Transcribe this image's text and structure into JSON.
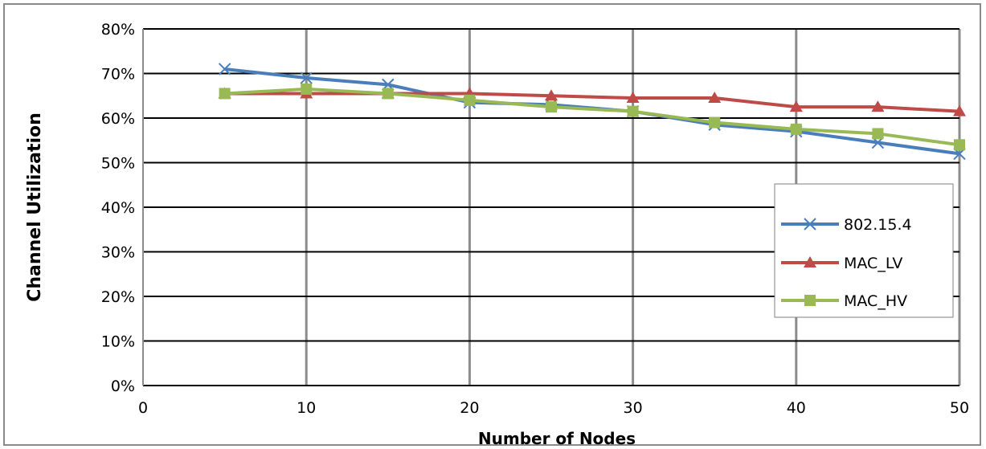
{
  "chart_data": {
    "type": "line",
    "title": "",
    "xlabel": "Number of Nodes",
    "ylabel": "Channel Utilization",
    "xlim": [
      0,
      50
    ],
    "ylim": [
      0,
      80
    ],
    "x_ticks": [
      0,
      10,
      20,
      30,
      40,
      50
    ],
    "y_ticks": [
      0,
      10,
      20,
      30,
      40,
      50,
      60,
      70,
      80
    ],
    "y_tick_labels": [
      "0%",
      "10%",
      "20%",
      "30%",
      "40%",
      "50%",
      "60%",
      "70%",
      "80%"
    ],
    "grid": {
      "horizontal": true,
      "vertical": true
    },
    "legend_position": "right",
    "series": [
      {
        "name": "802.15.4",
        "color": "#4a7ebb",
        "marker": "x",
        "x": [
          5,
          10,
          15,
          20,
          25,
          30,
          35,
          40,
          45,
          50
        ],
        "values": [
          71,
          69,
          67.5,
          63.5,
          63,
          61.5,
          58.5,
          57,
          54.5,
          52
        ]
      },
      {
        "name": "MAC_LV",
        "color": "#be4b48",
        "marker": "triangle",
        "x": [
          5,
          10,
          15,
          20,
          25,
          30,
          35,
          40,
          45,
          50
        ],
        "values": [
          65.5,
          65.5,
          65.5,
          65.5,
          65,
          64.5,
          64.5,
          62.5,
          62.5,
          61.5
        ]
      },
      {
        "name": "MAC_HV",
        "color": "#98b954",
        "marker": "square",
        "x": [
          5,
          10,
          15,
          20,
          25,
          30,
          35,
          40,
          45,
          50
        ],
        "values": [
          65.5,
          66.5,
          65.5,
          64,
          62.5,
          61.5,
          59,
          57.5,
          56.5,
          54
        ]
      }
    ]
  }
}
